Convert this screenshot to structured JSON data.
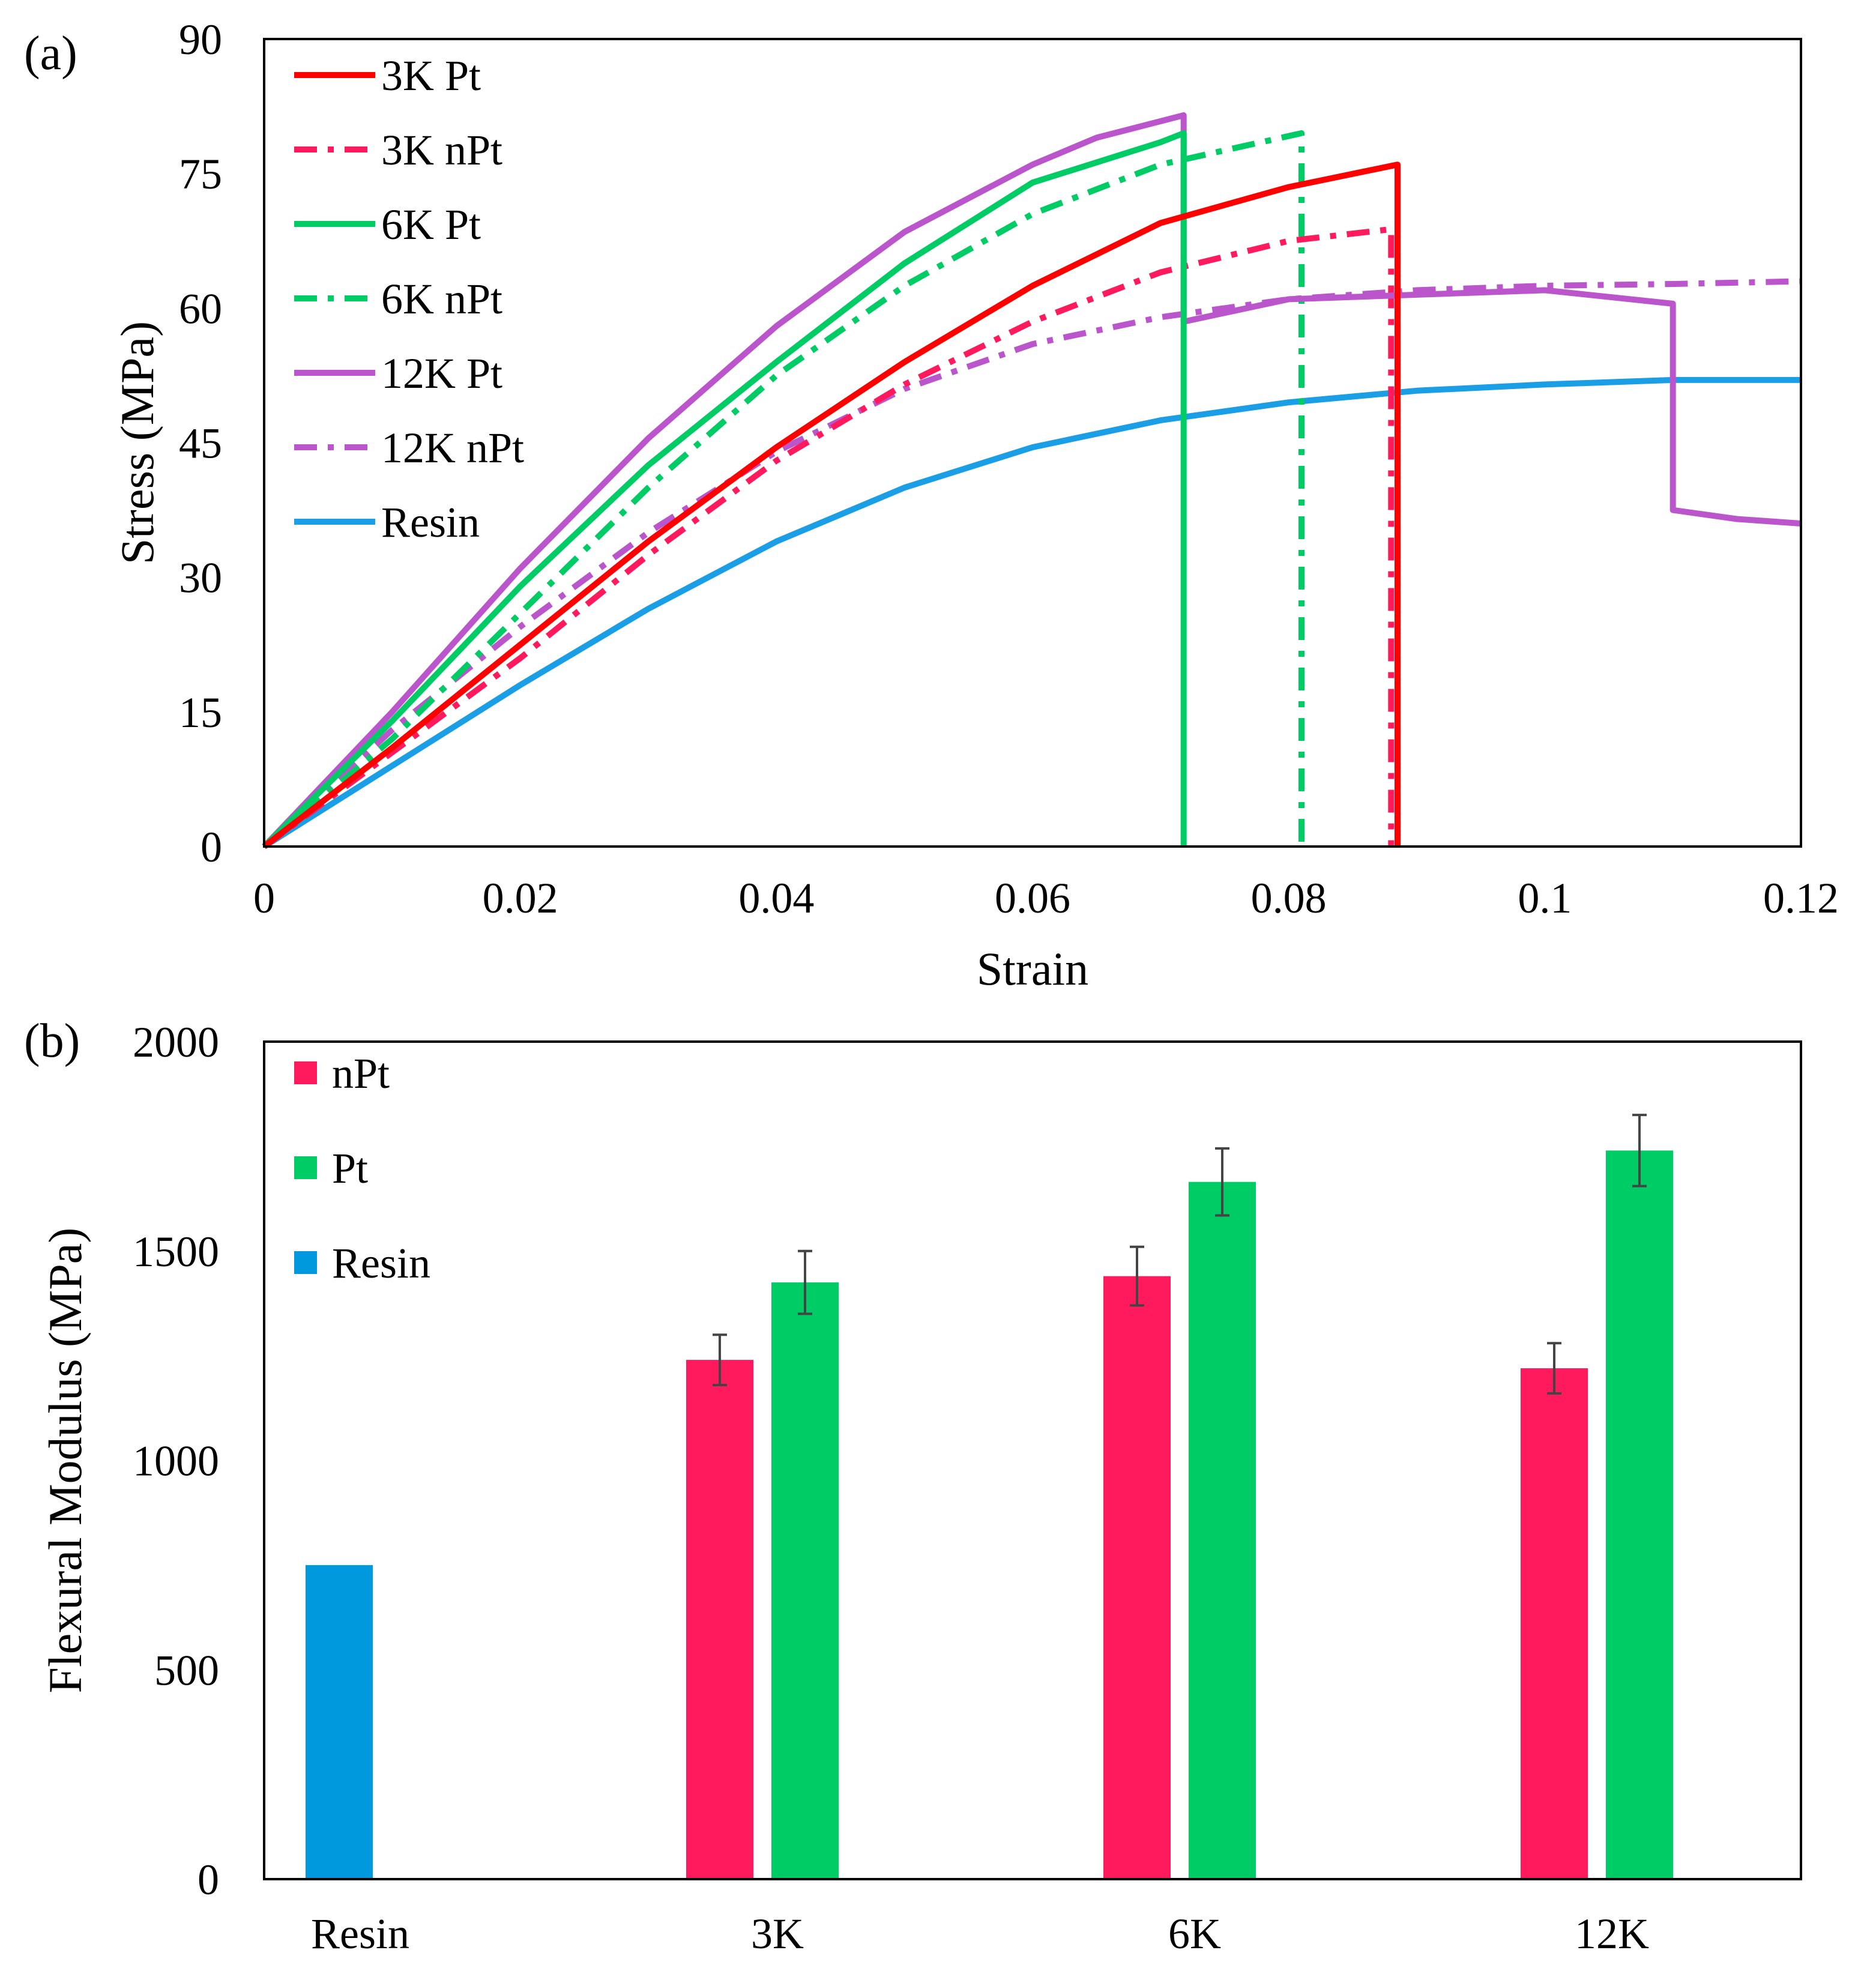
{
  "chart_data": [
    {
      "panel_label": "(a)",
      "type": "line",
      "xlabel": "Strain",
      "ylabel": "Stress (MPa)",
      "xlim": [
        0,
        0.12
      ],
      "ylim": [
        0,
        90
      ],
      "xticks": [
        0,
        0.02,
        0.04,
        0.06,
        0.08,
        0.1,
        0.12
      ],
      "xtick_labels": [
        "0",
        "0.02",
        "0.04",
        "0.06",
        "0.08",
        "0.1",
        "0.12"
      ],
      "yticks": [
        0,
        15,
        30,
        45,
        60,
        75,
        90
      ],
      "ytick_labels": [
        "0",
        "15",
        "30",
        "45",
        "60",
        "75",
        "90"
      ],
      "legend_position": "top-left",
      "series": [
        {
          "name": "3K Pt",
          "color": "#ff0000",
          "dash": "solid",
          "x": [
            0,
            0.01,
            0.02,
            0.03,
            0.04,
            0.05,
            0.06,
            0.07,
            0.08,
            0.0885,
            0.0885
          ],
          "y": [
            0,
            11,
            22.5,
            34,
            44.5,
            54,
            62.5,
            69.5,
            73.5,
            76,
            0
          ]
        },
        {
          "name": "3K nPt",
          "color": "#ff1a5e",
          "dash": "dashdot",
          "x": [
            0,
            0.01,
            0.02,
            0.03,
            0.04,
            0.05,
            0.06,
            0.07,
            0.08,
            0.088,
            0.088
          ],
          "y": [
            0,
            10.5,
            21,
            32.5,
            43,
            51.5,
            58.5,
            64,
            67.5,
            68.8,
            0
          ]
        },
        {
          "name": "6K Pt",
          "color": "#00cc66",
          "dash": "solid",
          "x": [
            0,
            0.01,
            0.02,
            0.03,
            0.04,
            0.05,
            0.06,
            0.07,
            0.0718,
            0.0718
          ],
          "y": [
            0,
            14,
            29,
            42.5,
            54,
            65,
            74,
            78.5,
            79.5,
            0
          ]
        },
        {
          "name": "6K nPt",
          "color": "#00cc66",
          "dash": "dashdot",
          "x": [
            0,
            0.01,
            0.02,
            0.03,
            0.04,
            0.05,
            0.06,
            0.07,
            0.081,
            0.081
          ],
          "y": [
            0,
            12,
            26,
            40,
            52.5,
            62.5,
            70.5,
            76,
            79.5,
            0
          ]
        },
        {
          "name": "12K Pt",
          "color": "#bb55cc",
          "dash": "solid",
          "x": [
            0,
            0.01,
            0.02,
            0.03,
            0.04,
            0.05,
            0.06,
            0.065,
            0.0718,
            0.0718,
            0.08,
            0.09,
            0.1,
            0.11,
            0.11,
            0.115,
            0.12
          ],
          "y": [
            0,
            15,
            31,
            45.5,
            58,
            68.5,
            76,
            79,
            81.5,
            58.5,
            61,
            61.5,
            62,
            60.5,
            37.5,
            36.5,
            36
          ]
        },
        {
          "name": "12K nPt",
          "color": "#bb55cc",
          "dash": "dashdot",
          "x": [
            0,
            0.01,
            0.02,
            0.03,
            0.04,
            0.05,
            0.06,
            0.07,
            0.08,
            0.09,
            0.1,
            0.11,
            0.12
          ],
          "y": [
            0,
            13,
            24.5,
            35,
            44,
            51,
            56,
            59,
            61,
            62,
            62.5,
            62.7,
            63
          ]
        },
        {
          "name": "Resin",
          "color": "#1a9ee6",
          "dash": "solid",
          "x": [
            0,
            0.01,
            0.02,
            0.03,
            0.04,
            0.05,
            0.06,
            0.07,
            0.08,
            0.09,
            0.1,
            0.11,
            0.12
          ],
          "y": [
            0,
            9,
            18,
            26.5,
            34,
            40,
            44.5,
            47.5,
            49.5,
            50.8,
            51.5,
            52,
            52
          ]
        }
      ]
    },
    {
      "panel_label": "(b)",
      "type": "bar",
      "xlabel": "",
      "ylabel": "Flexural Modulus (MPa)",
      "ylim": [
        0,
        2000
      ],
      "yticks": [
        0,
        500,
        1000,
        1500,
        2000
      ],
      "ytick_labels": [
        "0",
        "500",
        "1000",
        "1500",
        "2000"
      ],
      "categories": [
        "Resin",
        "3K",
        "6K",
        "12K"
      ],
      "legend_position": "top-left",
      "series": [
        {
          "name": "nPt",
          "color": "#ff1a5e",
          "values": [
            null,
            1240,
            1440,
            1220
          ],
          "errors": [
            null,
            60,
            70,
            60
          ]
        },
        {
          "name": "Pt",
          "color": "#00cc66",
          "values": [
            null,
            1425,
            1665,
            1740
          ],
          "errors": [
            null,
            75,
            80,
            85
          ]
        },
        {
          "name": "Resin",
          "color": "#0099dd",
          "values": [
            750,
            null,
            null,
            null
          ],
          "errors": [
            null,
            null,
            null,
            null
          ]
        }
      ]
    }
  ]
}
